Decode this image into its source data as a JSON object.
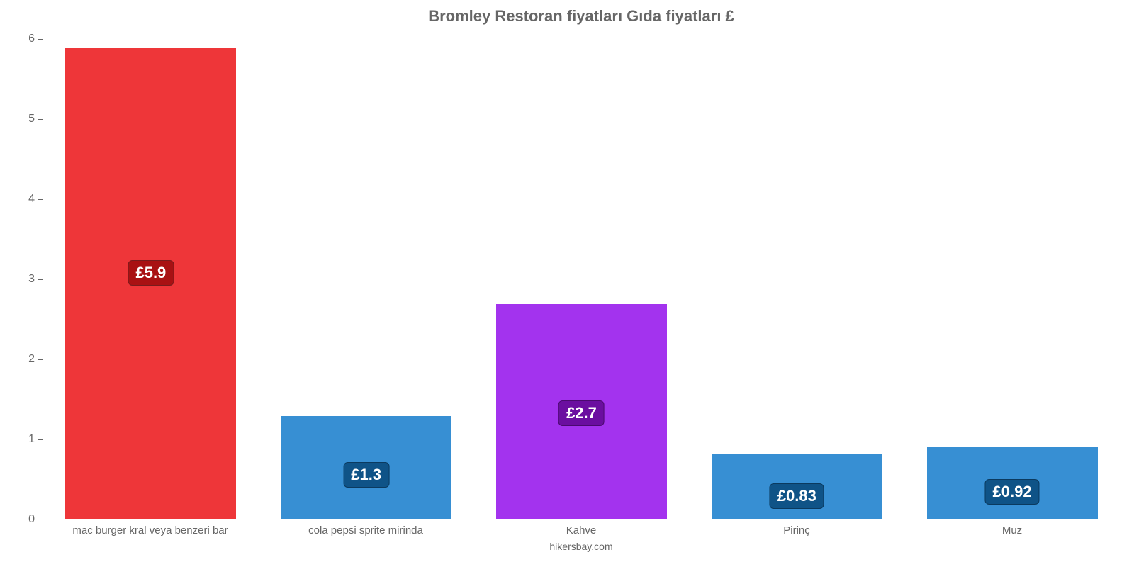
{
  "chart": {
    "type": "bar",
    "title": "Bromley Restoran fiyatları Gıda fiyatları £",
    "title_fontsize": 22,
    "title_color": "#666666",
    "source": "hikersbay.com",
    "source_fontsize": 14,
    "background_color": "#ffffff",
    "axis_color": "#666666",
    "tick_label_color": "#666666",
    "tick_label_fontsize": 16,
    "x_label_fontsize": 15,
    "bar_width_pct": 80,
    "ylim": [
      0,
      6.1
    ],
    "yticks": [
      0,
      1,
      2,
      3,
      4,
      5,
      6
    ],
    "categories": [
      "mac burger kral veya benzeri bar",
      "cola pepsi sprite mirinda",
      "Kahve",
      "Pirinç",
      "Muz"
    ],
    "values": [
      5.9,
      1.3,
      2.7,
      0.83,
      0.92
    ],
    "value_labels": [
      "£5.9",
      "£1.3",
      "£2.7",
      "£0.83",
      "£0.92"
    ],
    "bar_colors": [
      "#ee3639",
      "#378fd3",
      "#a333ee",
      "#378fd3",
      "#378fd3"
    ],
    "label_bg_colors": [
      "#a91113",
      "#0f5387",
      "#6b0ea0",
      "#0f5387",
      "#0f5387"
    ],
    "label_border_colors": [
      "#781c1d",
      "#0b3a5f",
      "#4b0a70",
      "#0b3a5f",
      "#0b3a5f"
    ],
    "label_fontsize": 22,
    "label_text_color": "#ffffff"
  }
}
